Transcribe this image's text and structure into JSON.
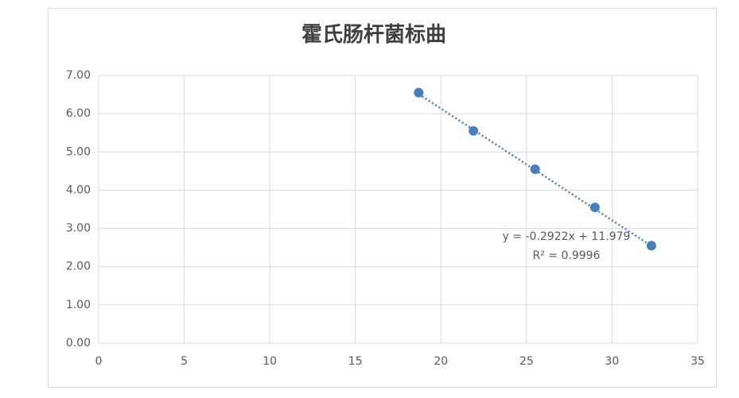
{
  "chart_data": {
    "type": "scatter",
    "title": "霍氏肠杆菌标曲",
    "series": [
      {
        "color": "#4a7ebb",
        "x": [
          18.7,
          21.9,
          25.5,
          29.0,
          32.3
        ],
        "values": [
          6.55,
          5.55,
          4.55,
          3.55,
          2.55
        ]
      }
    ],
    "trendline": {
      "equation": "y = -0.2922x + 11.979",
      "r_squared": "R² = 0.9996",
      "slope": -0.2922,
      "intercept": 11.979,
      "color": "#4a7ebb"
    },
    "xlim": [
      0,
      35
    ],
    "xticks": [
      0,
      5,
      10,
      15,
      20,
      25,
      30,
      35
    ],
    "ylim": [
      0,
      7
    ],
    "yticks": [
      {
        "value": 0,
        "label": "0.00"
      },
      {
        "value": 1,
        "label": "1.00"
      },
      {
        "value": 2,
        "label": "2.00"
      },
      {
        "value": 3,
        "label": "3.00"
      },
      {
        "value": 4,
        "label": "4.00"
      },
      {
        "value": 5,
        "label": "5.00"
      },
      {
        "value": 6,
        "label": "6.00"
      },
      {
        "value": 7,
        "label": "7.00"
      }
    ],
    "grid": true
  }
}
